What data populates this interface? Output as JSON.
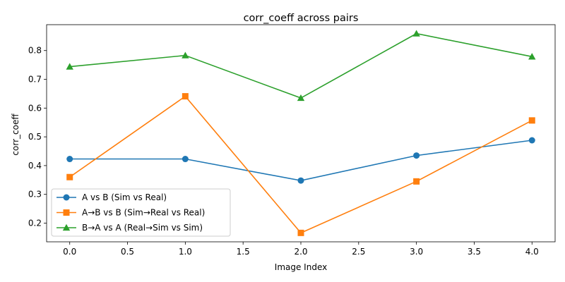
{
  "chart_data": {
    "type": "line",
    "title": "corr_coeff across pairs",
    "xlabel": "Image Index",
    "ylabel": "corr_coeff",
    "x": [
      0,
      1,
      2,
      3,
      4
    ],
    "xlim": [
      -0.2,
      4.2
    ],
    "ylim": [
      0.135,
      0.89
    ],
    "xticks": [
      0.0,
      0.5,
      1.0,
      1.5,
      2.0,
      2.5,
      3.0,
      3.5,
      4.0
    ],
    "xtick_labels": [
      "0.0",
      "0.5",
      "1.0",
      "1.5",
      "2.0",
      "2.5",
      "3.0",
      "3.5",
      "4.0"
    ],
    "yticks": [
      0.2,
      0.3,
      0.4,
      0.5,
      0.6,
      0.7,
      0.8
    ],
    "ytick_labels": [
      "0.2",
      "0.3",
      "0.4",
      "0.5",
      "0.6",
      "0.7",
      "0.8"
    ],
    "grid": false,
    "legend_position": "lower-left",
    "series": [
      {
        "name": "A vs B (Sim vs Real)",
        "color": "#1f77b4",
        "marker": "circle",
        "values": [
          0.423,
          0.423,
          0.348,
          0.435,
          0.488
        ]
      },
      {
        "name": "A→B vs B (Sim→Real vs Real)",
        "color": "#ff7f0e",
        "marker": "square",
        "values": [
          0.36,
          0.641,
          0.166,
          0.345,
          0.557
        ]
      },
      {
        "name": "B→A vs A (Real→Sim vs Sim)",
        "color": "#2ca02c",
        "marker": "triangle",
        "values": [
          0.744,
          0.783,
          0.635,
          0.859,
          0.779
        ]
      }
    ]
  }
}
